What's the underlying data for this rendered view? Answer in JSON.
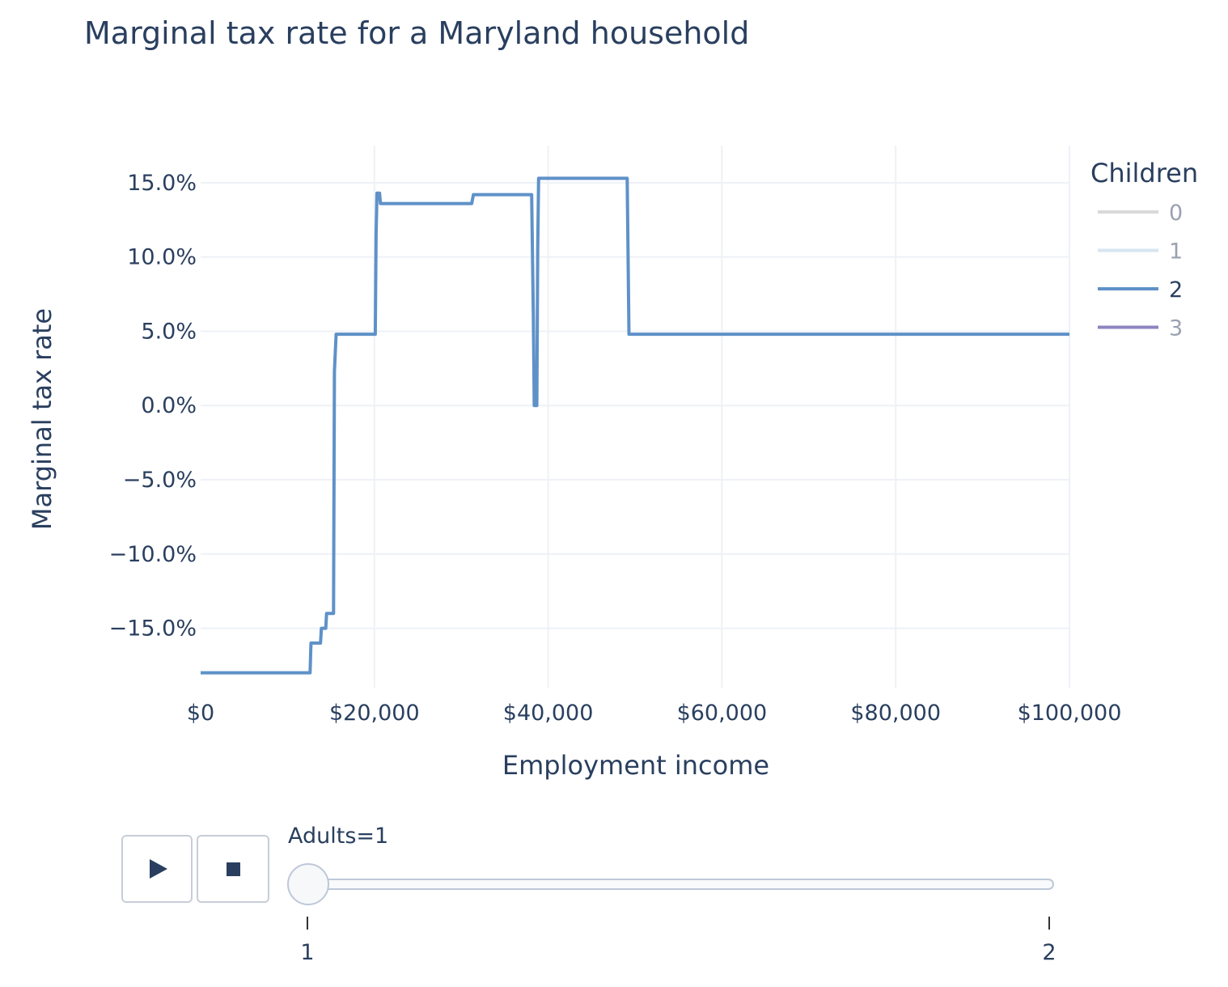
{
  "chart_data": {
    "type": "line",
    "title": "Marginal tax rate for a Maryland household",
    "xlabel": "Employment income",
    "ylabel": "Marginal tax rate",
    "xlim": [
      0,
      100000
    ],
    "ylim": [
      -19,
      17.5
    ],
    "x_ticks": [
      0,
      20000,
      40000,
      60000,
      80000,
      100000
    ],
    "x_tick_labels": [
      "$0",
      "$20,000",
      "$40,000",
      "$60,000",
      "$80,000",
      "$100,000"
    ],
    "y_ticks": [
      15,
      10,
      5,
      0,
      -5,
      -10,
      -15
    ],
    "y_tick_labels": [
      "15.0%",
      "10.0%",
      "5.0%",
      "0.0%",
      "−5.0%",
      "−10.0%",
      "−15.0%"
    ],
    "grid": true,
    "legend": {
      "title": "Children",
      "placement": "top-right",
      "items": [
        {
          "label": "0",
          "color": "#d9d9d9",
          "active": false
        },
        {
          "label": "1",
          "color": "#d6e6f2",
          "active": false
        },
        {
          "label": "2",
          "color": "#5f91c8",
          "active": true
        },
        {
          "label": "3",
          "color": "#8d84c0",
          "active": false
        }
      ]
    },
    "series": [
      {
        "name": "2",
        "color": "#5f91c8",
        "x": [
          0,
          12600,
          12700,
          13800,
          13900,
          14400,
          14500,
          15300,
          15400,
          15600,
          16000,
          20100,
          20200,
          20300,
          20600,
          20700,
          31200,
          31400,
          31500,
          38100,
          38300,
          38400,
          38500,
          38700,
          38800,
          38900,
          39000,
          46000,
          49100,
          49300,
          100000
        ],
        "values": [
          -18,
          -18,
          -16,
          -16,
          -15,
          -15,
          -14,
          -14,
          2.3,
          4.8,
          4.8,
          4.8,
          11.5,
          14.3,
          14.3,
          13.6,
          13.6,
          14.2,
          14.2,
          14.2,
          6,
          0,
          0,
          0,
          10.5,
          15.3,
          15.3,
          15.3,
          15.3,
          4.8,
          4.8
        ]
      }
    ]
  },
  "slider": {
    "label": "Adults=1",
    "ticks": [
      "1",
      "2"
    ],
    "value": "1"
  },
  "controls": {
    "play_icon": "play-icon",
    "stop_icon": "stop-icon"
  }
}
